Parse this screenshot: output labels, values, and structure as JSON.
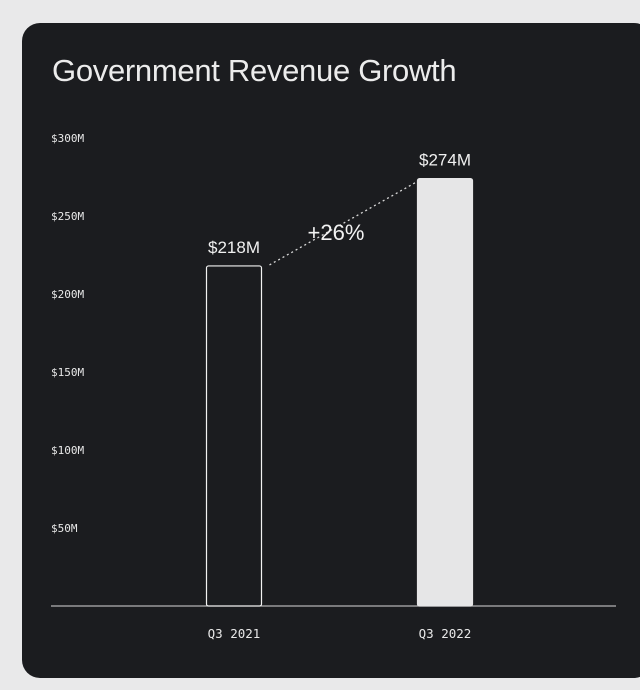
{
  "chart_data": {
    "type": "bar",
    "title": "Government Revenue Growth",
    "categories": [
      "Q3 2021",
      "Q3 2022"
    ],
    "values": [
      218,
      274
    ],
    "value_labels": [
      "$218M",
      "$274M"
    ],
    "unit": "$M",
    "yticks": [
      {
        "value": 50,
        "label": "$50M"
      },
      {
        "value": 100,
        "label": "$100M"
      },
      {
        "value": 150,
        "label": "$150M"
      },
      {
        "value": 200,
        "label": "$200M"
      },
      {
        "value": 250,
        "label": "$250M"
      },
      {
        "value": 300,
        "label": "$300M"
      }
    ],
    "ylim": [
      0,
      300
    ],
    "grid": false,
    "annotation": {
      "text": "+26%",
      "from": "Q3 2021",
      "to": "Q3 2022"
    },
    "xlabel": "",
    "ylabel": ""
  },
  "colors": {
    "background": "#1b1c1f",
    "page": "#e9e9ea",
    "bar_2021_fill": "#1b1c1f",
    "bar_2021_stroke": "#f2f2f2",
    "bar_2022_fill": "#e6e6e7",
    "text": "#ececec"
  }
}
